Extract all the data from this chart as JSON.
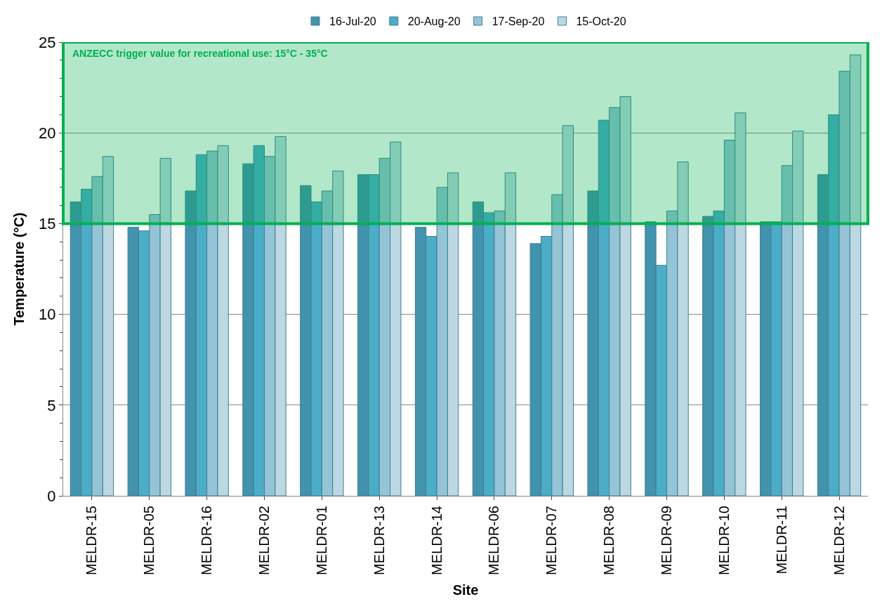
{
  "chart_data": {
    "type": "bar",
    "xlabel": "Site",
    "ylabel": "Temperature (°C)",
    "categories": [
      "MELDR-15",
      "MELDR-05",
      "MELDR-16",
      "MELDR-02",
      "MELDR-01",
      "MELDR-13",
      "MELDR-14",
      "MELDR-06",
      "MELDR-07",
      "MELDR-08",
      "MELDR-09",
      "MELDR-10",
      "MELDR-11",
      "MELDR-12"
    ],
    "series": [
      {
        "name": "16-Jul-20",
        "color": "#4293ae",
        "values": [
          16.2,
          14.8,
          16.8,
          18.3,
          17.1,
          17.7,
          14.8,
          16.2,
          13.9,
          16.8,
          15.1,
          15.4,
          15.1,
          17.7
        ]
      },
      {
        "name": "20-Aug-20",
        "color": "#4badc8",
        "values": [
          16.9,
          14.6,
          18.8,
          19.3,
          16.2,
          17.7,
          14.3,
          15.6,
          14.3,
          20.7,
          12.7,
          15.7,
          15.1,
          21.0
        ]
      },
      {
        "name": "17-Sep-20",
        "color": "#94c4d6",
        "values": [
          17.6,
          15.5,
          19.0,
          18.7,
          16.8,
          18.6,
          17.0,
          15.7,
          16.6,
          21.4,
          15.7,
          19.6,
          18.2,
          23.4
        ]
      },
      {
        "name": "15-Oct-20",
        "color": "#bcd8e3",
        "values": [
          18.7,
          18.6,
          19.3,
          19.8,
          17.9,
          19.5,
          17.8,
          17.8,
          20.4,
          22.0,
          18.4,
          21.1,
          20.1,
          24.3
        ]
      }
    ],
    "ylim": [
      0,
      25
    ],
    "yticks": [
      0,
      5,
      10,
      15,
      20,
      25
    ],
    "grid": "y",
    "legend": "top",
    "bands": [
      {
        "axis": "y",
        "from": 15,
        "to": 25,
        "label": "ANZECC trigger value for recreational use: 15°C - 35°C",
        "color": "#00b050"
      }
    ]
  }
}
